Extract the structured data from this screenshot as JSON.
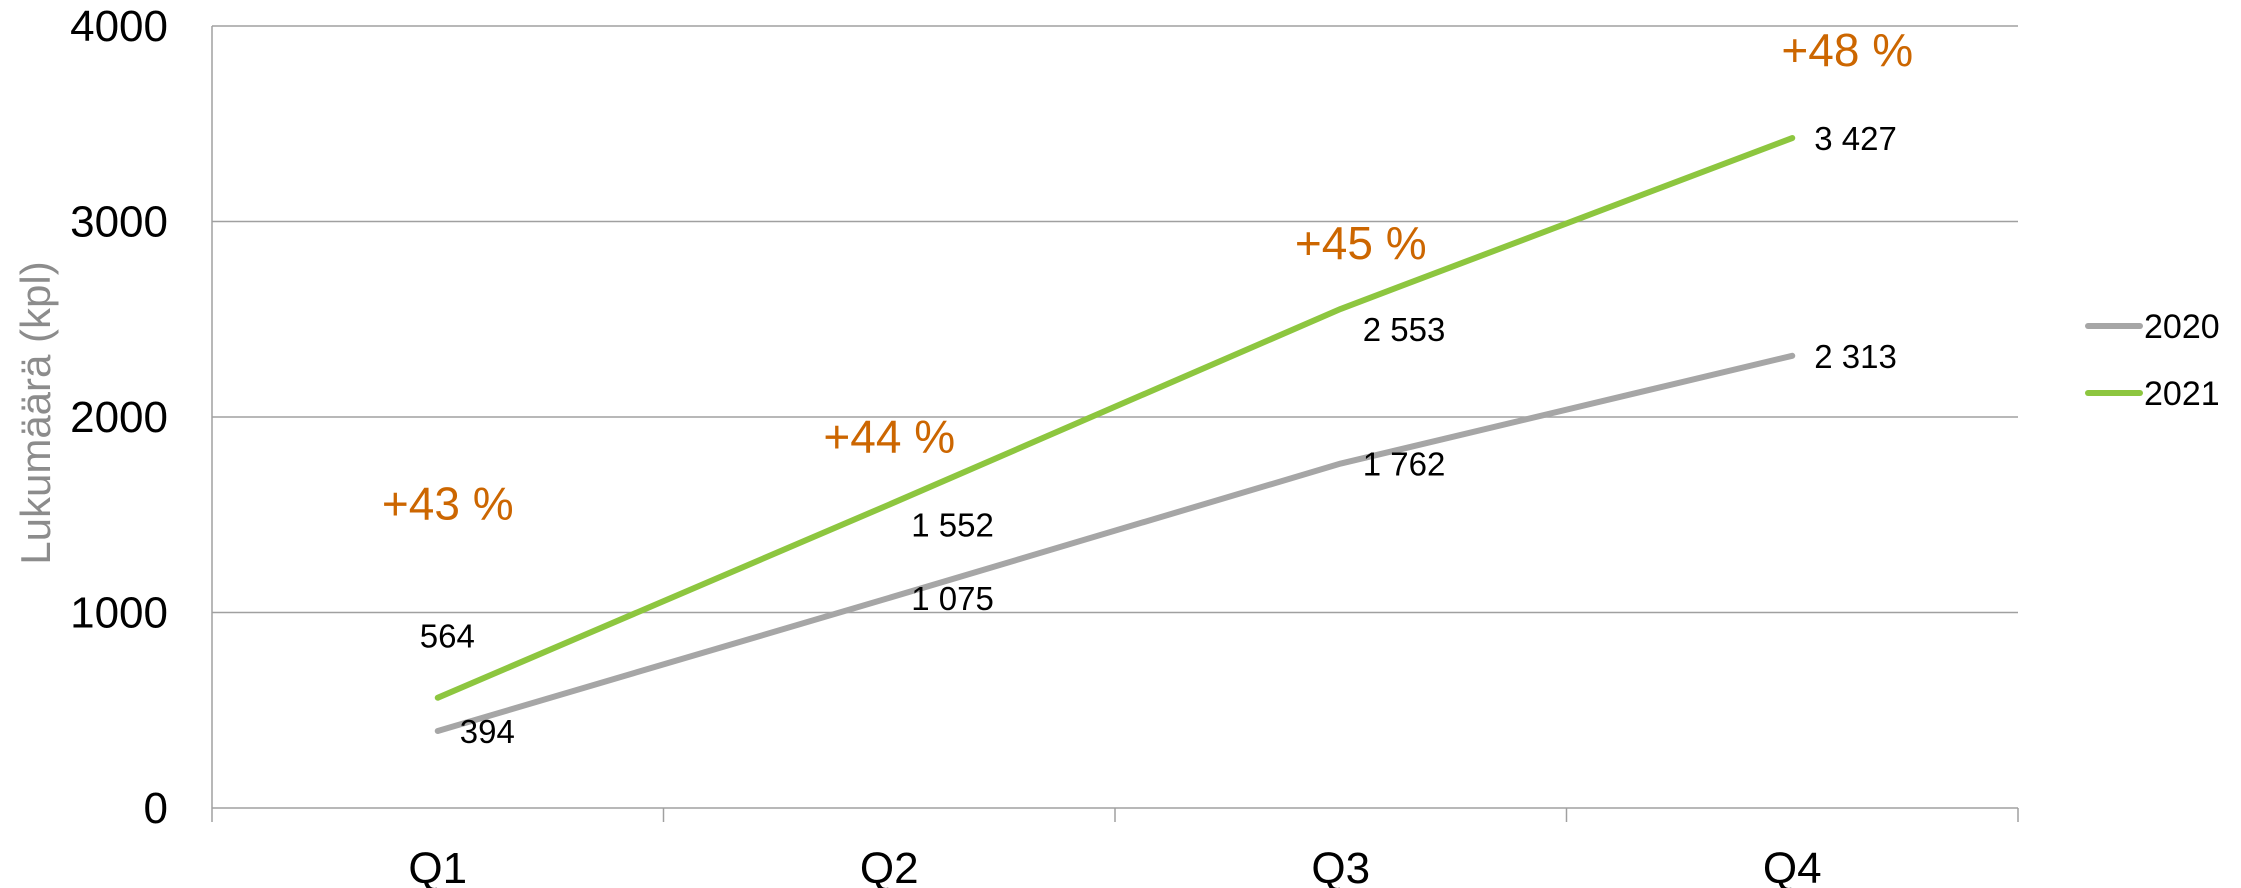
{
  "chart_data": {
    "type": "line",
    "categories": [
      "Q1",
      "Q2",
      "Q3",
      "Q4"
    ],
    "ylabel": "Lukumäärä (kpl)",
    "ylim": [
      0,
      4000
    ],
    "yticks": [
      0,
      1000,
      2000,
      3000,
      4000
    ],
    "grid": true,
    "legend_position": "right",
    "series": [
      {
        "name": "2020",
        "color": "#a6a6a6",
        "values": [
          394,
          1075,
          1762,
          2313
        ],
        "labels": [
          "394",
          "1 075",
          "1 762",
          "2 313"
        ]
      },
      {
        "name": "2021",
        "color": "#8dc63f",
        "values": [
          564,
          1552,
          2553,
          3427
        ],
        "labels": [
          "564",
          "1 552",
          "2 553",
          "3 427"
        ]
      }
    ],
    "annotations": [
      "+43 %",
      "+44 %",
      "+45 %",
      "+48 %"
    ],
    "annotation_color": "#cc6600"
  }
}
